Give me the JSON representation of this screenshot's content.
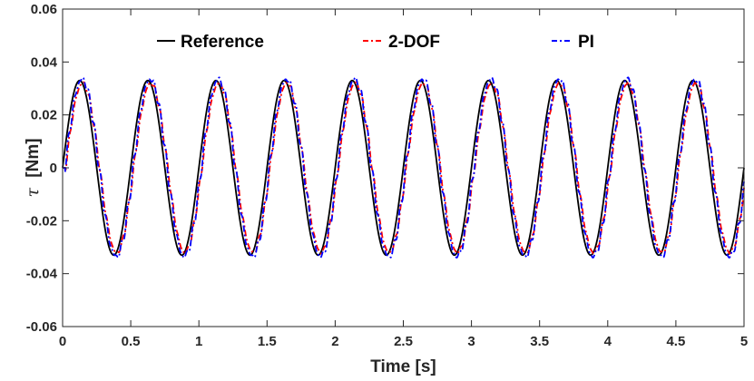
{
  "chart_data": {
    "type": "line",
    "title": "",
    "xlabel": "Time [s]",
    "ylabel_symbol": "τ",
    "ylabel_unit": "[Nm]",
    "xlim": [
      0,
      5
    ],
    "ylim": [
      -0.06,
      0.06
    ],
    "grid": false,
    "legend_position": "top (horizontal)",
    "xticks": [
      0,
      0.5,
      1,
      1.5,
      2,
      2.5,
      3,
      3.5,
      4,
      4.5,
      5
    ],
    "xtick_labels": [
      "0",
      "0.5",
      "1",
      "1.5",
      "2",
      "2.5",
      "3",
      "3.5",
      "4",
      "4.5",
      "5"
    ],
    "yticks": [
      -0.06,
      -0.04,
      -0.02,
      0,
      0.02,
      0.04,
      0.06
    ],
    "ytick_labels": [
      "-0.06",
      "-0.04",
      "-0.02",
      "0",
      "0.02",
      "0.04",
      "0.06"
    ],
    "signal": {
      "description_values": "sinusoid amplitude 0.033 Nm, frequency 2 Hz, starting at 0",
      "amplitude": 0.033,
      "frequency_hz": 2,
      "t_start": 0,
      "t_end": 5
    },
    "series": [
      {
        "name": "Reference",
        "color": "#000000",
        "dash": "solid",
        "amplitude": 0.033,
        "delay_s": 0.0,
        "ripple": 0.0
      },
      {
        "name": "2-DOF",
        "color": "#ff0000",
        "dash": "dashdot",
        "amplitude": 0.032,
        "delay_s": 0.022,
        "ripple": 0.0015
      },
      {
        "name": "PI",
        "color": "#0000ff",
        "dash": "dashdot",
        "amplitude": 0.0335,
        "delay_s": 0.018,
        "ripple": 0.0025
      }
    ]
  }
}
